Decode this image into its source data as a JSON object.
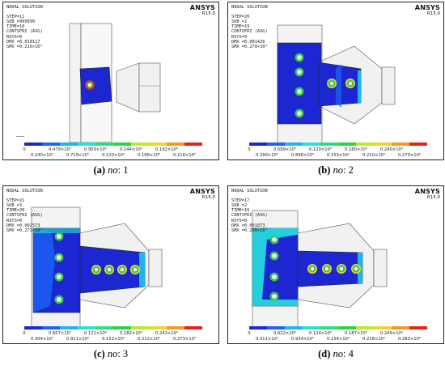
{
  "legend_colors": [
    "#1d27d1",
    "#1c64f5",
    "#1fb5f2",
    "#27e2d8",
    "#27e07d",
    "#2bd43a",
    "#b8ec2b",
    "#f3d42a",
    "#f7981e",
    "#e82416"
  ],
  "panels": [
    {
      "header": [
        "NODAL SOLUTION",
        "",
        "STEP=11",
        "SUB =999999",
        "TIME=10",
        "CONTSFRI (AVG)",
        "RSYS=0",
        "DMX =0.010117",
        "SMX =0.216×10⁶"
      ],
      "ansys": "ANSYS",
      "release": "R15.0",
      "legend_top": [
        "0",
        "0.479×10⁵",
        "0.959×10⁵",
        "0.144×10⁶",
        "0.192×10⁶"
      ],
      "legend_bottom": [
        "0.240×10⁵",
        "0.719×10⁵",
        "0.120×10⁶",
        "0.168×10⁶",
        "0.216×10⁶"
      ],
      "caption_letter": "(a)",
      "caption_italic": "no",
      "caption_value": ": 1"
    },
    {
      "header": [
        "NODAL SOLUTION",
        "",
        "STEP=20",
        "SUB =2",
        "TIME=19",
        "CONTSFRI (AVG)",
        "RSYS=0",
        "DMX =0.001426",
        "SMX =0.270×10⁶"
      ],
      "ansys": "ANSYS",
      "release": "R15.0",
      "legend_top": [
        "0",
        "0.599×10⁵",
        "0.120×10⁶",
        "0.180×10⁶",
        "0.240×10⁶"
      ],
      "legend_bottom": [
        "0.299×10⁵",
        "0.898×10⁵",
        "0.150×10⁶",
        "0.210×10⁶",
        "0.270×10⁶"
      ],
      "caption_letter": "(b)",
      "caption_italic": "no",
      "caption_value": ": 2"
    },
    {
      "header": [
        "NODAL SOLUTION",
        "",
        "STEP=21",
        "SUB =3",
        "TIME=20",
        "CONTSFRI (AVG)",
        "RSYS=0",
        "DMX =0.002573",
        "SMX =0.273×10⁶"
      ],
      "ansys": "ANSYS",
      "release": "R15.0",
      "legend_top": [
        "0",
        "0.607×10⁵",
        "0.121×10⁶",
        "0.182×10⁶",
        "0.243×10⁶"
      ],
      "legend_bottom": [
        "0.304×10⁵",
        "0.911×10⁵",
        "0.152×10⁶",
        "0.212×10⁶",
        "0.273×10⁶"
      ],
      "caption_letter": "(c)",
      "caption_italic": "no",
      "caption_value": ": 3"
    },
    {
      "header": [
        "NODAL SOLUTION",
        "",
        "STEP=17",
        "SUB =2",
        "TIME=16",
        "CONTSFRI (AVG)",
        "RSYS=0",
        "DMX =0.001873",
        "SMX =0.280×10⁶"
      ],
      "ansys": "ANSYS",
      "release": "R15.0",
      "legend_top": [
        "0",
        "0.622×10⁵",
        "0.124×10⁶",
        "0.187×10⁶",
        "0.249×10⁶"
      ],
      "legend_bottom": [
        "0.311×10⁵",
        "0.934×10⁵",
        "0.156×10⁶",
        "0.218×10⁶",
        "0.280×10⁶"
      ],
      "caption_letter": "(d)",
      "caption_italic": "no",
      "caption_value": ": 4"
    }
  ]
}
